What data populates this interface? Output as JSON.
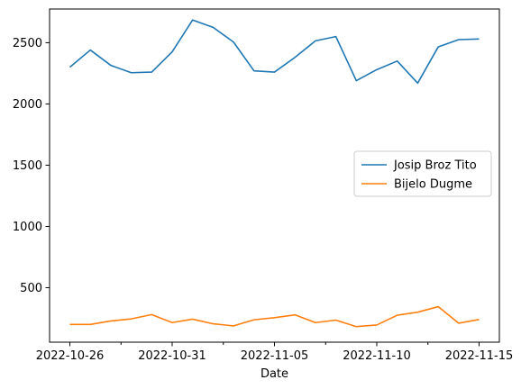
{
  "chart_data": {
    "type": "line",
    "title": "",
    "xlabel": "Date",
    "ylabel": "",
    "x": [
      "2022-10-26",
      "2022-10-27",
      "2022-10-28",
      "2022-10-29",
      "2022-10-30",
      "2022-10-31",
      "2022-11-01",
      "2022-11-02",
      "2022-11-03",
      "2022-11-04",
      "2022-11-05",
      "2022-11-06",
      "2022-11-07",
      "2022-11-08",
      "2022-11-09",
      "2022-11-10",
      "2022-11-11",
      "2022-11-12",
      "2022-11-13",
      "2022-11-14",
      "2022-11-15"
    ],
    "series": [
      {
        "name": "Josip Broz Tito",
        "color": "#1f77b4",
        "values": [
          2300,
          2440,
          2315,
          2255,
          2260,
          2425,
          2685,
          2625,
          2505,
          2270,
          2260,
          2380,
          2515,
          2550,
          2190,
          2280,
          2350,
          2170,
          2465,
          2525,
          2530
        ]
      },
      {
        "name": "Bijelo Dugme",
        "color": "#ff7f0e",
        "values": [
          200,
          200,
          228,
          245,
          280,
          215,
          243,
          205,
          188,
          238,
          255,
          278,
          215,
          235,
          182,
          195,
          275,
          300,
          345,
          210,
          240
        ]
      }
    ],
    "x_tick_labels": [
      "2022-10-26",
      "2022-10-31",
      "2022-11-05",
      "2022-11-10",
      "2022-11-15"
    ],
    "x_tick_label_indices": [
      0,
      5,
      10,
      15,
      20
    ],
    "x_minor_tick_indices": [
      2.5,
      7.5,
      12.5,
      17.5
    ],
    "y_ticks": [
      500,
      1000,
      1500,
      2000,
      2500
    ],
    "y_tick_labels": [
      "500",
      "1000",
      "1500",
      "2000",
      "2500"
    ],
    "ylim": [
      55,
      2775
    ],
    "grid": false,
    "legend_position": "center-right"
  }
}
